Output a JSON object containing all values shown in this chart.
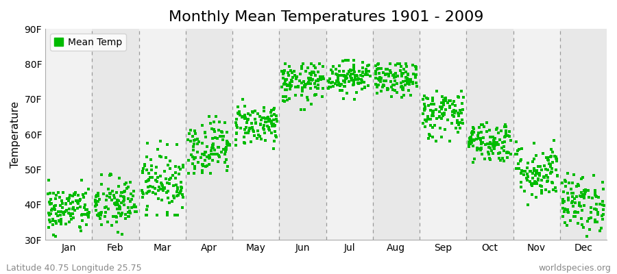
{
  "title": "Monthly Mean Temperatures 1901 - 2009",
  "ylabel": "Temperature",
  "ylim": [
    30,
    90
  ],
  "yticks": [
    30,
    40,
    50,
    60,
    70,
    80,
    90
  ],
  "ytick_labels": [
    "30F",
    "40F",
    "50F",
    "60F",
    "70F",
    "80F",
    "90F"
  ],
  "months": [
    "Jan",
    "Feb",
    "Mar",
    "Apr",
    "May",
    "Jun",
    "Jul",
    "Aug",
    "Sep",
    "Oct",
    "Nov",
    "Dec"
  ],
  "month_means": [
    38.5,
    40.0,
    46.5,
    56.5,
    63.0,
    74.5,
    76.5,
    75.5,
    66.0,
    58.0,
    49.5,
    40.5
  ],
  "month_stds": [
    3.5,
    4.0,
    4.5,
    4.0,
    3.0,
    3.0,
    2.5,
    2.5,
    3.5,
    3.0,
    4.0,
    4.0
  ],
  "month_mins": [
    31,
    31,
    37,
    49,
    56,
    67,
    70,
    67,
    57,
    52,
    40,
    31
  ],
  "month_maxs": [
    47,
    50,
    58,
    65,
    70,
    80,
    81,
    80,
    75,
    67,
    60,
    50
  ],
  "n_years": 109,
  "dot_color": "#00bb00",
  "dot_size": 5,
  "legend_label": "Mean Temp",
  "bg_color": "#efefef",
  "bg_band_light": "#f2f2f2",
  "bg_band_dark": "#e8e8e8",
  "dashed_color": "#999999",
  "bottom_left_text": "Latitude 40.75 Longitude 25.75",
  "bottom_right_text": "worldspecies.org",
  "title_fontsize": 16,
  "axis_fontsize": 11,
  "tick_fontsize": 10,
  "annotation_fontsize": 9
}
